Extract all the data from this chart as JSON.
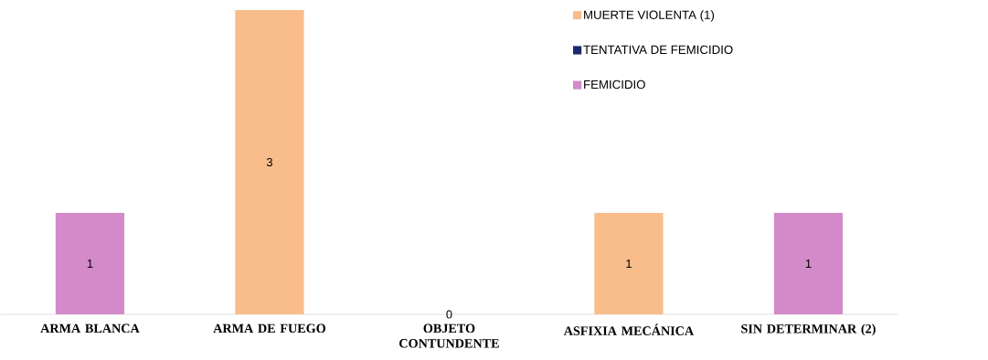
{
  "chart_data": {
    "type": "bar",
    "stacked": true,
    "categories": [
      "ARMA BLANCA",
      "ARMA DE FUEGO",
      "OBJETO CONTUNDENTE",
      "ASFIXIA MECÁNICA",
      "SIN DETERMINAR (2)"
    ],
    "series": [
      {
        "name": "MUERTE VIOLENTA (1)",
        "color": "#f9bd8c",
        "values": [
          0,
          3,
          0,
          1,
          0
        ],
        "value_labels": [
          null,
          "3",
          null,
          "1",
          null
        ]
      },
      {
        "name": "TENTATIVA DE FEMICIDIO",
        "color": "#1a2a6c",
        "values": [
          0,
          0,
          0,
          0,
          0
        ],
        "value_labels": [
          null,
          null,
          null,
          null,
          null
        ]
      },
      {
        "name": "FEMICIDIO",
        "color": "#d38ac8",
        "values": [
          1,
          0,
          0,
          0,
          1
        ],
        "value_labels": [
          "1",
          null,
          "0",
          null,
          "1"
        ]
      }
    ],
    "ylim": [
      0,
      3
    ],
    "legend": "top right",
    "tick_labels": "x"
  }
}
